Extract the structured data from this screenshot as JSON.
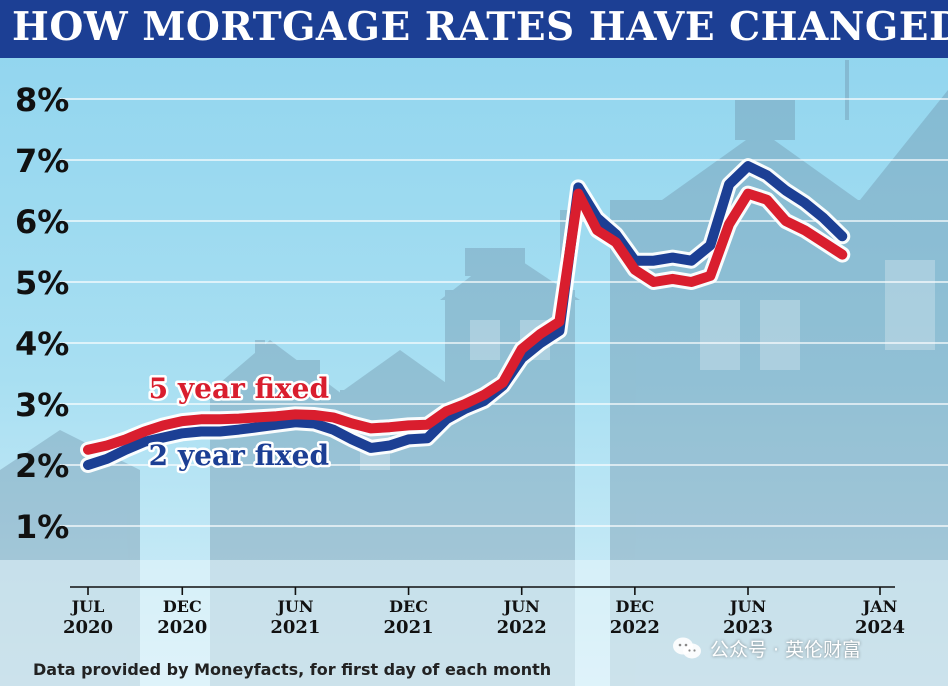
{
  "header": {
    "title": "HOW MORTGAGE RATES HAVE CHANGED"
  },
  "footer": {
    "source": "Data provided by Moneyfacts, for first day of each month"
  },
  "watermark": {
    "text": "公众号 · 英伦财富"
  },
  "colors": {
    "five_year": "#d91e2e",
    "two_year": "#1c3f94",
    "title_bar": "#1c3f94"
  },
  "chart_data": {
    "type": "line",
    "title": "HOW MORTGAGE RATES HAVE CHANGED",
    "xlabel": "",
    "ylabel": "",
    "ylim": [
      0,
      8.5
    ],
    "y_ticks": [
      "1%",
      "2%",
      "3%",
      "4%",
      "5%",
      "6%",
      "7%",
      "8%"
    ],
    "y_tick_values": [
      1,
      2,
      3,
      4,
      5,
      6,
      7,
      8
    ],
    "x_ticks": [
      {
        "month": 0,
        "line1": "JUL",
        "line2": "2020"
      },
      {
        "month": 5,
        "line1": "DEC",
        "line2": "2020"
      },
      {
        "month": 11,
        "line1": "JUN",
        "line2": "2021"
      },
      {
        "month": 17,
        "line1": "DEC",
        "line2": "2021"
      },
      {
        "month": 23,
        "line1": "JUN",
        "line2": "2022"
      },
      {
        "month": 29,
        "line1": "DEC",
        "line2": "2022"
      },
      {
        "month": 35,
        "line1": "JUN",
        "line2": "2023"
      },
      {
        "month": 42,
        "line1": "JAN",
        "line2": "2024"
      }
    ],
    "x_range": [
      0,
      42
    ],
    "grid": true,
    "series": [
      {
        "name": "5 year fixed",
        "color": "#d91e2e",
        "label_at": {
          "month": 8,
          "value": 3.1
        },
        "values": [
          2.25,
          2.32,
          2.42,
          2.55,
          2.65,
          2.72,
          2.75,
          2.75,
          2.76,
          2.78,
          2.8,
          2.83,
          2.82,
          2.78,
          2.68,
          2.6,
          2.62,
          2.65,
          2.66,
          2.88,
          3.0,
          3.15,
          3.35,
          3.9,
          4.15,
          4.35,
          6.45,
          5.85,
          5.65,
          5.2,
          5.0,
          5.05,
          5.0,
          5.1,
          5.95,
          6.45,
          6.35,
          6.0,
          5.85,
          5.65,
          5.45
        ]
      },
      {
        "name": "2 year fixed",
        "color": "#1c3f94",
        "label_at": {
          "month": 8,
          "value": 2.0
        },
        "values": [
          2.0,
          2.1,
          2.25,
          2.38,
          2.45,
          2.52,
          2.55,
          2.55,
          2.58,
          2.62,
          2.66,
          2.7,
          2.68,
          2.58,
          2.42,
          2.28,
          2.32,
          2.42,
          2.44,
          2.75,
          2.92,
          3.05,
          3.3,
          3.75,
          4.0,
          4.2,
          6.55,
          6.05,
          5.78,
          5.35,
          5.35,
          5.4,
          5.35,
          5.6,
          6.6,
          6.9,
          6.75,
          6.5,
          6.3,
          6.05,
          5.75
        ]
      }
    ]
  }
}
